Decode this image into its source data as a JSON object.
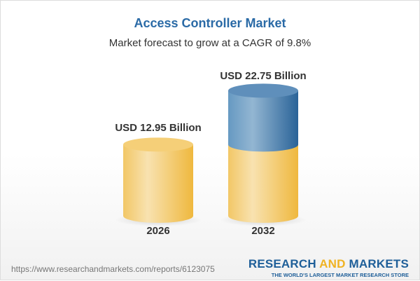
{
  "title": "Access Controller Market",
  "subtitle": "Market forecast to grow at a CAGR of 9.8%",
  "chart_data": {
    "type": "bar",
    "style": "3d-cylinder",
    "categories": [
      "2026",
      "2032"
    ],
    "values": [
      12.95,
      22.75
    ],
    "data_labels": [
      "USD 12.95 Billion",
      "USD 22.75 Billion"
    ],
    "colors": {
      "base": "#f2c14e",
      "growth": "#3f78a8"
    }
  },
  "footer": {
    "url": "https://www.researchandmarkets.com/reports/6123075",
    "logo_word1": "RESEARCH",
    "logo_word2": "AND",
    "logo_word3": "MARKETS",
    "logo_tagline": "THE WORLD'S LARGEST MARKET RESEARCH STORE"
  }
}
